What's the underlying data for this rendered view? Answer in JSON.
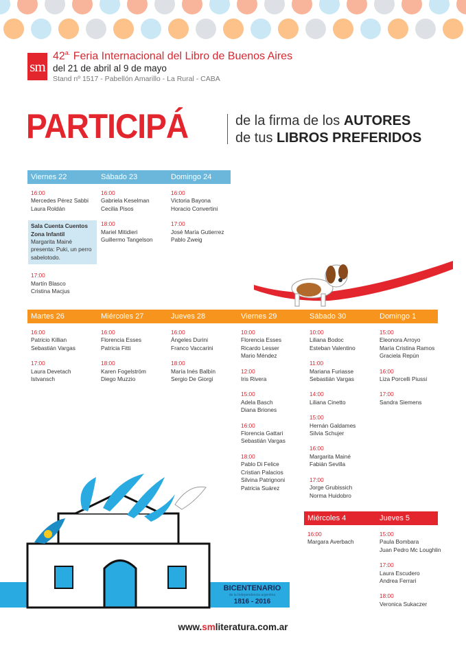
{
  "colors": {
    "red": "#e3262e",
    "blue": "#6bb7dc",
    "orange": "#f7941d",
    "dot_salmon": "#f9b59c",
    "dot_blue": "#c9e7f5",
    "dot_gray": "#dde1e6",
    "dot_orange": "#fdc18a"
  },
  "header": {
    "logo": "sm",
    "edition": "42",
    "edition_suffix": "a.",
    "title": " Feria Internacional del Libro de Buenos Aires",
    "dates": "del 21 de abril al 9 de mayo",
    "location": "Stand nº 1517 - Pabellón Amarillo - La Rural - CABA"
  },
  "headline": {
    "main": "PARTICIPÁ",
    "line1_light": "de la firma de los ",
    "line1_bold": "AUTORES",
    "line2_light": "de tus ",
    "line2_bold": "LIBROS PREFERIDOS"
  },
  "sections": [
    {
      "color": "#6bb7dc",
      "days": [
        {
          "day": "Viernes 22",
          "entries": [
            {
              "time": "16:00",
              "names": [
                "Mercedes Pérez Sabbi",
                "Laura Roldán"
              ]
            },
            {
              "note_title": [
                "Sala Cuenta Cuentos",
                "Zona Infantil"
              ],
              "names": [
                "Margarita Mainé",
                "presenta: Puki, un perro",
                "sabelotodo."
              ]
            },
            {
              "time": "17:00",
              "names": [
                "Martín Blasco",
                "Cristina Macjus"
              ]
            }
          ]
        },
        {
          "day": "Sábado 23",
          "entries": [
            {
              "time": "16:00",
              "names": [
                "Gabriela Keselman",
                "Cecilia Pisos"
              ]
            },
            {
              "time": "18:00",
              "names": [
                "Mariel Mitidieri",
                "Guillermo Tangelson"
              ]
            }
          ]
        },
        {
          "day": "Domingo 24",
          "entries": [
            {
              "time": "16:00",
              "names": [
                "Victoria Bayona",
                "Horacio Convertini"
              ]
            },
            {
              "time": "17:00",
              "names": [
                "José María Gutierrez",
                "Pablo Zweig"
              ]
            }
          ]
        }
      ]
    },
    {
      "color": "#f7941d",
      "days": [
        {
          "day": "Martes 26",
          "entries": [
            {
              "time": "16:00",
              "names": [
                "Patricio Killian",
                "Sebastián Vargas"
              ]
            },
            {
              "time": "17:00",
              "names": [
                "Laura Devetach",
                "Istvansch"
              ]
            }
          ]
        },
        {
          "day": "Miércoles 27",
          "entries": [
            {
              "time": "16:00",
              "names": [
                "Florencia Esses",
                "Patricia Fitti"
              ]
            },
            {
              "time": "18:00",
              "names": [
                "Karen Fogelström",
                "Diego Muzzio"
              ]
            }
          ]
        },
        {
          "day": "Jueves 28",
          "entries": [
            {
              "time": "16:00",
              "names": [
                "Ángeles Durini",
                "Franco Vaccarini"
              ]
            },
            {
              "time": "18:00",
              "names": [
                "María Inés Balbín",
                "Sergio De Giorgi"
              ]
            }
          ]
        },
        {
          "day": "Viernes 29",
          "entries": [
            {
              "time": "10:00",
              "names": [
                "Florencia Esses",
                "Ricardo Lesser",
                "Mario Méndez"
              ]
            },
            {
              "time": "12:00",
              "names": [
                "Iris Rivera"
              ]
            },
            {
              "time": "15:00",
              "names": [
                "Adela Basch",
                "Diana Briones"
              ]
            },
            {
              "time": "16:00",
              "names": [
                "Florencia Gattari",
                "Sebastián Vargas"
              ]
            },
            {
              "time": "18:00",
              "names": [
                "Pablo Di Felice",
                "Cristian Palacios",
                "Silvina Patrignoni",
                "Patricia Suárez"
              ]
            }
          ]
        },
        {
          "day": "Sábado 30",
          "entries": [
            {
              "time": "10:00",
              "names": [
                "Liliana Bodoc",
                "Esteban Valentino"
              ]
            },
            {
              "time": "11:00",
              "names": [
                "Mariana Furiasse",
                "Sebastián Vargas"
              ]
            },
            {
              "time": "14:00",
              "names": [
                "Liliana Cinetto"
              ]
            },
            {
              "time": "15:00",
              "names": [
                "Hernán Galdames",
                "Silvia Schujer"
              ]
            },
            {
              "time": "16:00",
              "names": [
                "Margarita Mainé",
                "Fabián Sevilla"
              ]
            },
            {
              "time": "17:00",
              "names": [
                "Jorge Grubissich",
                "Norma Huidobro"
              ]
            }
          ]
        },
        {
          "day": "Domingo 1",
          "entries": [
            {
              "time": "15:00",
              "names": [
                "Eleonora Arroyo",
                "María Cristina Ramos",
                "Graciela Repún"
              ]
            },
            {
              "time": "16:00",
              "names": [
                "Liza Porcelli Piussi"
              ]
            },
            {
              "time": "17:00",
              "names": [
                "Sandra Siemens"
              ]
            }
          ]
        }
      ]
    },
    {
      "color": "#e3262e",
      "days": [
        {
          "day": "Miércoles 4",
          "entries": [
            {
              "time": "16:00",
              "names": [
                "Margara Averbach"
              ]
            }
          ]
        },
        {
          "day": "Jueves 5",
          "entries": [
            {
              "time": "15:00",
              "names": [
                "Paula Bombara",
                "Juan Pedro Mc Loughlin"
              ]
            },
            {
              "time": "17:00",
              "names": [
                "Laura Escudero",
                "Andrea Ferrari"
              ]
            },
            {
              "time": "18:00",
              "names": [
                "Veronica Sukaczer"
              ]
            }
          ]
        }
      ]
    }
  ],
  "bicentenario": {
    "title": "BICENTENARIO",
    "subtitle": "de la Independencia argentina",
    "years": "1816 - 2016"
  },
  "website": {
    "prefix": "www.",
    "brand": "sm",
    "suffix": "literatura.com.ar"
  }
}
